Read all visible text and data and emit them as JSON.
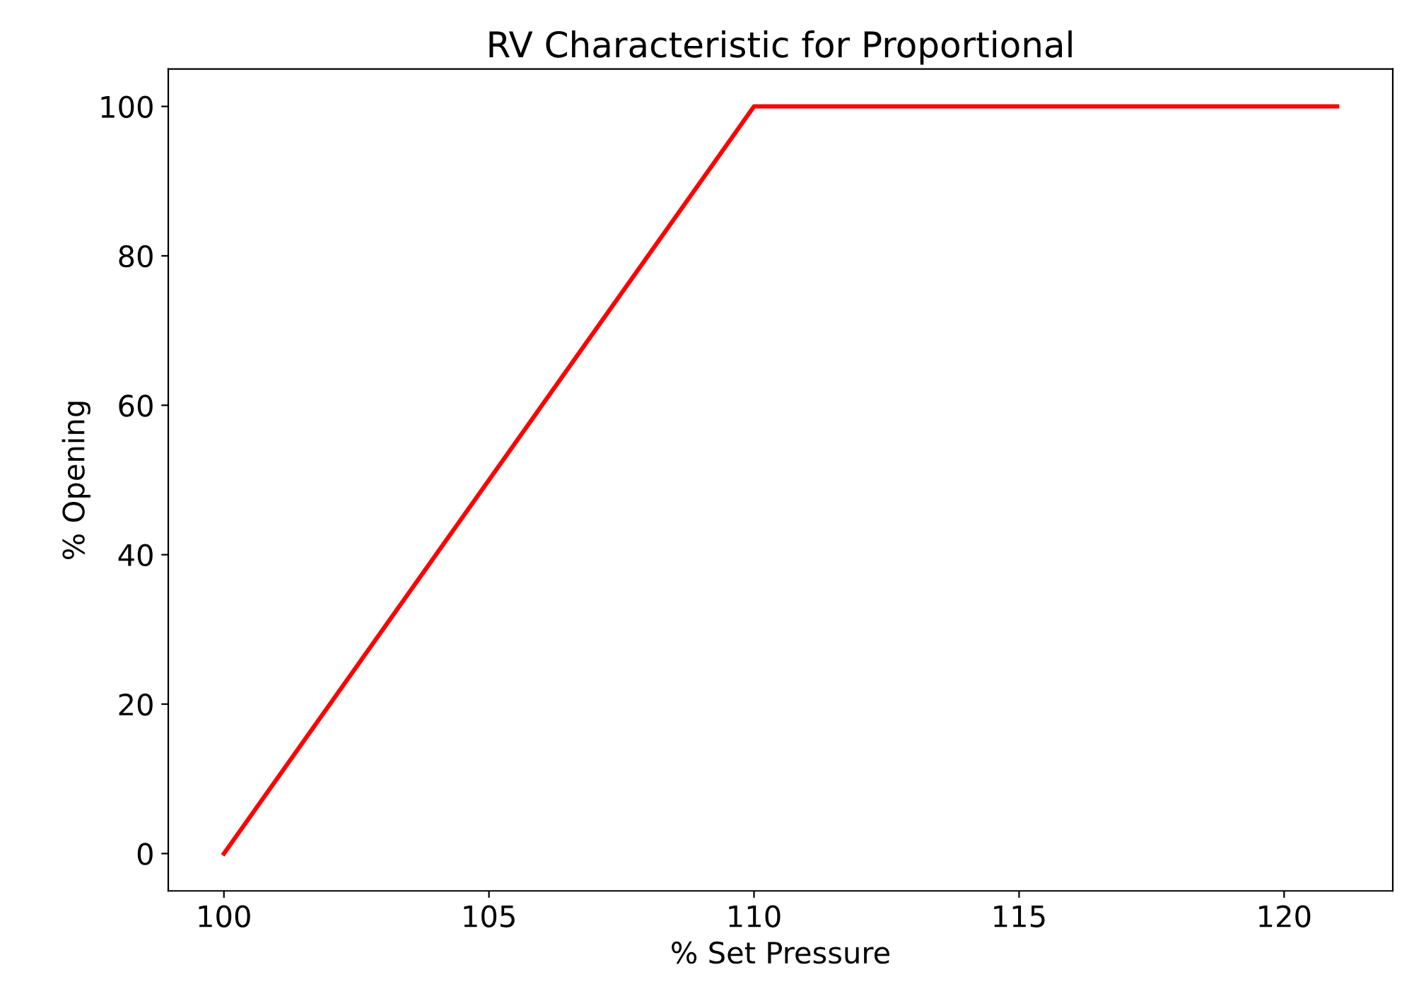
{
  "chart_data": {
    "type": "line",
    "title": "RV Characteristic for Proportional",
    "xlabel": "% Set Pressure",
    "ylabel": "% Opening",
    "x": [
      100,
      110,
      121
    ],
    "series": [
      {
        "color": "#ff0000",
        "values": [
          0,
          100,
          100
        ]
      }
    ],
    "xlim": [
      98.95,
      122.05
    ],
    "xticks": [
      100,
      105,
      110,
      115,
      120
    ],
    "ylim": [
      -5,
      105
    ],
    "yticks": [
      0,
      20,
      40,
      60,
      80,
      100
    ],
    "grid": false,
    "marker": "none",
    "line_style": "solid"
  }
}
